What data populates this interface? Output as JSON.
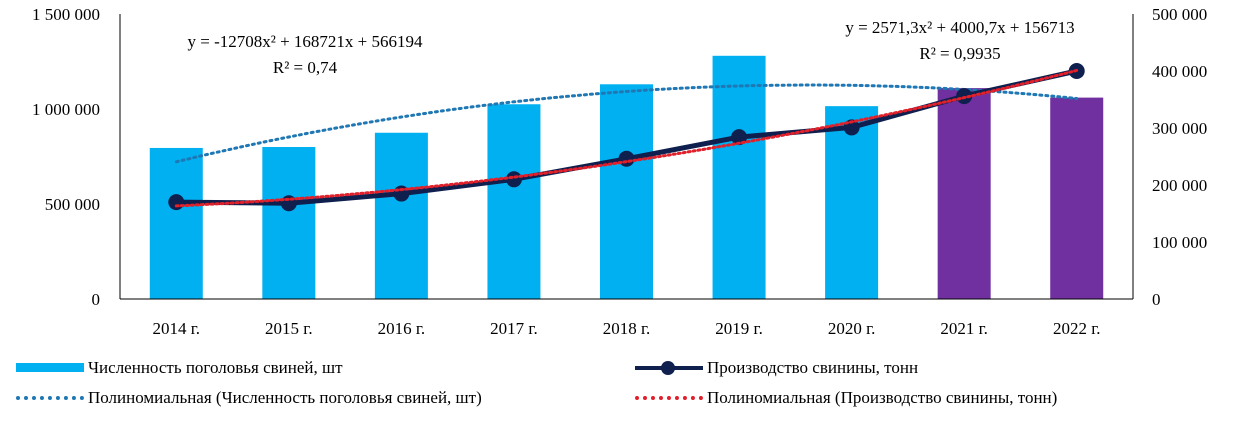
{
  "chart_data": {
    "type": "bar",
    "categories": [
      "2014 г.",
      "2015 г.",
      "2016 г.",
      "2017 г.",
      "2018 г.",
      "2019 г.",
      "2020 г.",
      "2021 г.",
      "2022 г."
    ],
    "y_left": {
      "min": 0,
      "max": 1500000,
      "ticks": [
        "0",
        "500 000",
        "1 000 000",
        "1 500 000"
      ]
    },
    "y_right": {
      "min": 0,
      "max": 500000,
      "ticks": [
        "0",
        "100 000",
        "200 000",
        "300 000",
        "400 000",
        "500 000"
      ]
    },
    "series": [
      {
        "name": "Численность поголовья свиней, шт",
        "type": "bar",
        "axis": "left",
        "values": [
          795000,
          800000,
          875000,
          1025000,
          1130000,
          1280000,
          1015000,
          1110000,
          1060000
        ],
        "colors": [
          "#00b0f0",
          "#00b0f0",
          "#00b0f0",
          "#00b0f0",
          "#00b0f0",
          "#00b0f0",
          "#00b0f0",
          "#7030a0",
          "#7030a0"
        ]
      },
      {
        "name": "Производство свинины, тонн",
        "type": "line",
        "axis": "right",
        "values": [
          170000,
          168000,
          185000,
          210000,
          246000,
          284000,
          301000,
          356000,
          400000
        ],
        "color": "#0f1f4e"
      },
      {
        "name": "Полиномиальная (Численность поголовья свиней, шт)",
        "type": "trend",
        "axis": "left",
        "coefficients": [
          -12708,
          168721,
          566194
        ],
        "color": "#1f77b4"
      },
      {
        "name": "Полиномиальная (Производство свинины, тонн)",
        "type": "trend",
        "axis": "right",
        "coefficients": [
          2571.3,
          4000.7,
          156713
        ],
        "color": "#e0202a"
      }
    ],
    "annotations": {
      "left_eq": "y = -12708x² + 168721x + 566194",
      "left_r2": "R² = 0,74",
      "right_eq": "y = 2571,3x² + 4000,7x + 156713",
      "right_r2": "R² = 0,9935"
    },
    "legend": [
      "Численность поголовья свиней, шт",
      "Производство свинины, тонн",
      "Полиномиальная (Численность поголовья свиней, шт)",
      "Полиномиальная (Производство свинины, тонн)"
    ],
    "legend_position": "bottom"
  }
}
